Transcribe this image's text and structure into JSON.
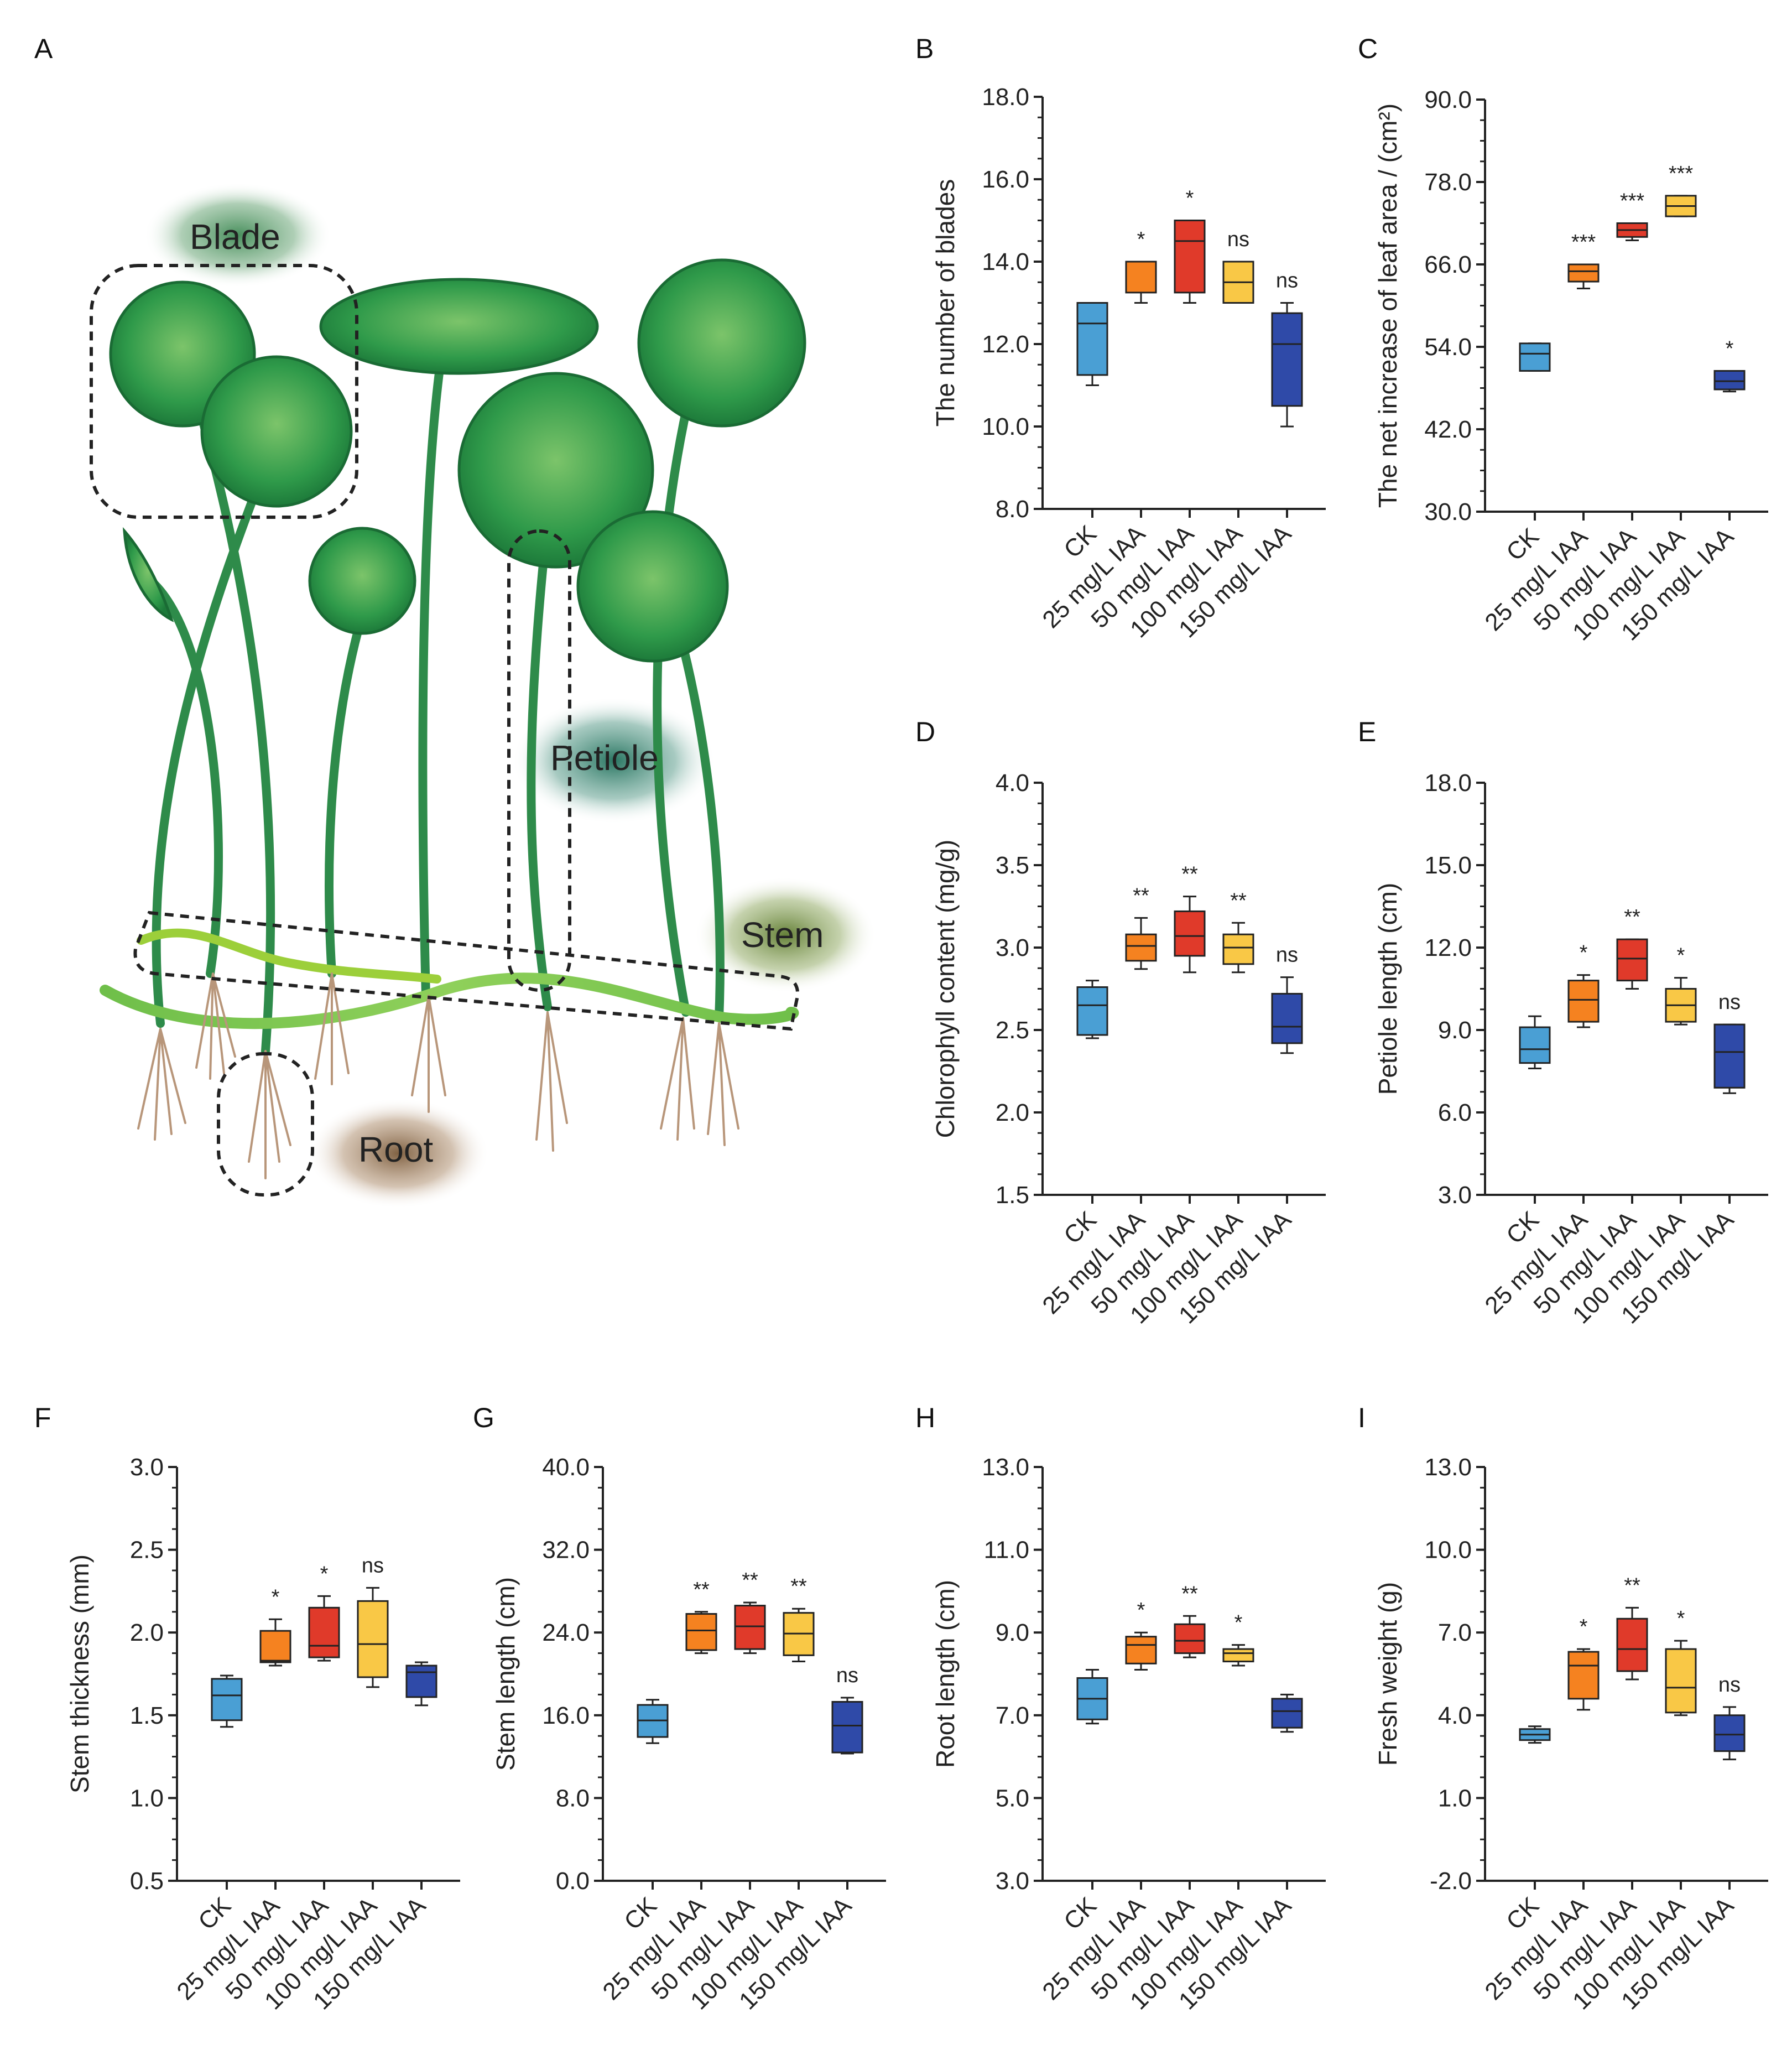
{
  "figure": {
    "panel_letters": [
      "A",
      "B",
      "C",
      "D",
      "E",
      "F",
      "G",
      "H",
      "I"
    ],
    "illustration": {
      "part_labels": [
        "Blade",
        "Petiole",
        "Stem",
        "Root"
      ]
    },
    "colors": {
      "CK": "#4a9fd4",
      "25 mg/L IAA": "#f58220",
      "50 mg/L IAA": "#e03a2a",
      "100 mg/L IAA": "#f9c846",
      "150 mg/L IAA": "#2f4aa8"
    }
  },
  "chart_data": [
    {
      "id": "B",
      "type": "box",
      "ylabel": "The number of blades",
      "categories": [
        "CK",
        "25 mg/L IAA",
        "50 mg/L IAA",
        "100 mg/L IAA",
        "150 mg/L IAA"
      ],
      "ylim": [
        8.0,
        18.0
      ],
      "yticks": [
        "8.0",
        "10.0",
        "12.0",
        "14.0",
        "16.0",
        "18.0"
      ],
      "boxes": [
        {
          "min": 11.0,
          "q1": 11.25,
          "median": 12.5,
          "q3": 13.0,
          "max": 13.0
        },
        {
          "min": 13.0,
          "q1": 13.25,
          "median": 14.0,
          "q3": 14.0,
          "max": 14.0
        },
        {
          "min": 13.0,
          "q1": 13.25,
          "median": 14.5,
          "q3": 15.0,
          "max": 15.0
        },
        {
          "min": 13.0,
          "q1": 13.0,
          "median": 13.5,
          "q3": 14.0,
          "max": 14.0
        },
        {
          "min": 10.0,
          "q1": 10.5,
          "median": 12.0,
          "q3": 12.75,
          "max": 13.0
        }
      ],
      "significance": [
        "",
        "*",
        "*",
        "ns",
        "ns"
      ]
    },
    {
      "id": "C",
      "type": "box",
      "ylabel": "The net increase of leaf area / (cm²)",
      "categories": [
        "CK",
        "25 mg/L IAA",
        "50 mg/L IAA",
        "100 mg/L IAA",
        "150 mg/L IAA"
      ],
      "ylim": [
        30.0,
        90.0
      ],
      "yticks": [
        "30.0",
        "42.0",
        "54.0",
        "66.0",
        "78.0",
        "90.0"
      ],
      "boxes": [
        {
          "min": 50.5,
          "q1": 50.5,
          "median": 53.0,
          "q3": 54.5,
          "max": 54.5
        },
        {
          "min": 62.5,
          "q1": 63.5,
          "median": 65.0,
          "q3": 66.0,
          "max": 66.0
        },
        {
          "min": 69.5,
          "q1": 70.0,
          "median": 71.0,
          "q3": 72.0,
          "max": 72.0
        },
        {
          "min": 73.0,
          "q1": 73.0,
          "median": 74.5,
          "q3": 76.0,
          "max": 76.0
        },
        {
          "min": 47.5,
          "q1": 47.8,
          "median": 49.0,
          "q3": 50.5,
          "max": 50.5
        }
      ],
      "significance": [
        "",
        "***",
        "***",
        "***",
        "*"
      ]
    },
    {
      "id": "D",
      "type": "box",
      "ylabel": "Chlorophyll content (mg/g)",
      "categories": [
        "CK",
        "25 mg/L IAA",
        "50 mg/L IAA",
        "100 mg/L IAA",
        "150 mg/L IAA"
      ],
      "ylim": [
        1.5,
        4.0
      ],
      "yticks": [
        "1.5",
        "2.0",
        "2.5",
        "3.0",
        "3.5",
        "4.0"
      ],
      "boxes": [
        {
          "min": 2.45,
          "q1": 2.47,
          "median": 2.65,
          "q3": 2.76,
          "max": 2.8
        },
        {
          "min": 2.87,
          "q1": 2.92,
          "median": 3.01,
          "q3": 3.08,
          "max": 3.18
        },
        {
          "min": 2.85,
          "q1": 2.95,
          "median": 3.07,
          "q3": 3.22,
          "max": 3.31
        },
        {
          "min": 2.85,
          "q1": 2.9,
          "median": 3.0,
          "q3": 3.08,
          "max": 3.15
        },
        {
          "min": 2.36,
          "q1": 2.42,
          "median": 2.52,
          "q3": 2.72,
          "max": 2.82
        }
      ],
      "significance": [
        "",
        "**",
        "**",
        "**",
        "ns"
      ]
    },
    {
      "id": "E",
      "type": "box",
      "ylabel": "Petiole length (cm)",
      "categories": [
        "CK",
        "25 mg/L IAA",
        "50 mg/L IAA",
        "100 mg/L IAA",
        "150 mg/L IAA"
      ],
      "ylim": [
        3.0,
        18.0
      ],
      "yticks": [
        "3.0",
        "6.0",
        "9.0",
        "12.0",
        "15.0",
        "18.0"
      ],
      "boxes": [
        {
          "min": 7.6,
          "q1": 7.8,
          "median": 8.3,
          "q3": 9.1,
          "max": 9.5
        },
        {
          "min": 9.1,
          "q1": 9.3,
          "median": 10.1,
          "q3": 10.8,
          "max": 11.0
        },
        {
          "min": 10.5,
          "q1": 10.8,
          "median": 11.6,
          "q3": 12.3,
          "max": 12.3
        },
        {
          "min": 9.2,
          "q1": 9.3,
          "median": 9.9,
          "q3": 10.5,
          "max": 10.9
        },
        {
          "min": 6.7,
          "q1": 6.9,
          "median": 8.2,
          "q3": 9.2,
          "max": 9.2
        }
      ],
      "significance": [
        "",
        "*",
        "**",
        "*",
        "ns"
      ]
    },
    {
      "id": "F",
      "type": "box",
      "ylabel": "Stem thickness (mm)",
      "categories": [
        "CK",
        "25 mg/L IAA",
        "50 mg/L IAA",
        "100 mg/L IAA",
        "150 mg/L IAA"
      ],
      "ylim": [
        0.5,
        3.0
      ],
      "yticks": [
        "0.5",
        "1.0",
        "1.5",
        "2.0",
        "2.5",
        "3.0"
      ],
      "boxes": [
        {
          "min": 1.43,
          "q1": 1.47,
          "median": 1.62,
          "q3": 1.72,
          "max": 1.74
        },
        {
          "min": 1.8,
          "q1": 1.82,
          "median": 1.83,
          "q3": 2.01,
          "max": 2.08
        },
        {
          "min": 1.83,
          "q1": 1.85,
          "median": 1.92,
          "q3": 2.15,
          "max": 2.22
        },
        {
          "min": 1.67,
          "q1": 1.73,
          "median": 1.93,
          "q3": 2.19,
          "max": 2.27
        },
        {
          "min": 1.56,
          "q1": 1.61,
          "median": 1.76,
          "q3": 1.8,
          "max": 1.82
        }
      ],
      "significance": [
        "",
        "*",
        "*",
        "ns",
        ""
      ]
    },
    {
      "id": "G",
      "type": "box",
      "ylabel": "Stem length (cm)",
      "categories": [
        "CK",
        "25 mg/L IAA",
        "50 mg/L IAA",
        "100 mg/L IAA",
        "150 mg/L IAA"
      ],
      "ylim": [
        0.0,
        40.0
      ],
      "yticks": [
        "0.0",
        "8.0",
        "16.0",
        "24.0",
        "32.0",
        "40.0"
      ],
      "boxes": [
        {
          "min": 13.3,
          "q1": 13.9,
          "median": 15.5,
          "q3": 17.0,
          "max": 17.5
        },
        {
          "min": 22.0,
          "q1": 22.3,
          "median": 24.2,
          "q3": 25.8,
          "max": 26.0
        },
        {
          "min": 22.0,
          "q1": 22.4,
          "median": 24.6,
          "q3": 26.6,
          "max": 26.9
        },
        {
          "min": 21.2,
          "q1": 21.8,
          "median": 23.9,
          "q3": 25.9,
          "max": 26.3
        },
        {
          "min": 12.3,
          "q1": 12.4,
          "median": 15.0,
          "q3": 17.3,
          "max": 17.7
        }
      ],
      "significance": [
        "",
        "**",
        "**",
        "**",
        "ns"
      ]
    },
    {
      "id": "H",
      "type": "box",
      "ylabel": "Root length (cm)",
      "categories": [
        "CK",
        "25 mg/L IAA",
        "50 mg/L IAA",
        "100 mg/L IAA",
        "150 mg/L IAA"
      ],
      "ylim": [
        3.0,
        13.0
      ],
      "yticks": [
        "3.0",
        "5.0",
        "7.0",
        "9.0",
        "11.0",
        "13.0"
      ],
      "boxes": [
        {
          "min": 6.8,
          "q1": 6.9,
          "median": 7.4,
          "q3": 7.9,
          "max": 8.1
        },
        {
          "min": 8.1,
          "q1": 8.25,
          "median": 8.7,
          "q3": 8.9,
          "max": 9.0
        },
        {
          "min": 8.4,
          "q1": 8.5,
          "median": 8.8,
          "q3": 9.2,
          "max": 9.4
        },
        {
          "min": 8.2,
          "q1": 8.3,
          "median": 8.5,
          "q3": 8.6,
          "max": 8.7
        },
        {
          "min": 6.6,
          "q1": 6.7,
          "median": 7.1,
          "q3": 7.4,
          "max": 7.5
        }
      ],
      "significance": [
        "",
        "*",
        "**",
        "*",
        ""
      ]
    },
    {
      "id": "I",
      "type": "box",
      "ylabel": "Fresh weight (g)",
      "categories": [
        "CK",
        "25 mg/L IAA",
        "50 mg/L IAA",
        "100 mg/L IAA",
        "150 mg/L IAA"
      ],
      "ylim": [
        -2.0,
        13.0
      ],
      "yticks": [
        "-2.0",
        "1.0",
        "4.0",
        "7.0",
        "10.0",
        "13.0"
      ],
      "boxes": [
        {
          "min": 3.0,
          "q1": 3.1,
          "median": 3.3,
          "q3": 3.5,
          "max": 3.6
        },
        {
          "min": 4.2,
          "q1": 4.6,
          "median": 5.8,
          "q3": 6.3,
          "max": 6.4
        },
        {
          "min": 5.3,
          "q1": 5.6,
          "median": 6.4,
          "q3": 7.5,
          "max": 7.9
        },
        {
          "min": 4.0,
          "q1": 4.1,
          "median": 5.0,
          "q3": 6.4,
          "max": 6.7
        },
        {
          "min": 2.4,
          "q1": 2.7,
          "median": 3.3,
          "q3": 4.0,
          "max": 4.3
        }
      ],
      "significance": [
        "",
        "*",
        "**",
        "*",
        "ns"
      ]
    }
  ]
}
